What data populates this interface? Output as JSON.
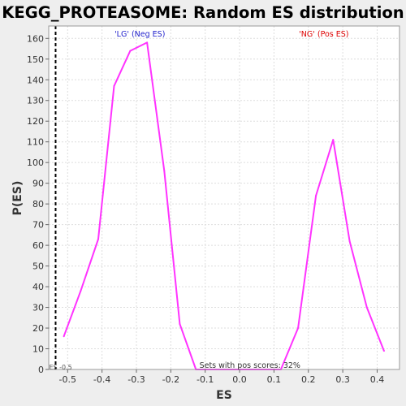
{
  "chart_data": {
    "type": "line",
    "title": "KEGG_PROTEASOME: Random ES distribution",
    "xlabel": "ES",
    "ylabel": "P(ES)",
    "xlim": [
      -0.555,
      0.465
    ],
    "ylim": [
      0,
      166
    ],
    "x_ticks": [
      -0.5,
      -0.4,
      -0.3,
      -0.2,
      -0.1,
      0.0,
      0.1,
      0.2,
      0.3,
      0.4
    ],
    "x_tick_labels": [
      "-0.5",
      "-0.4",
      "-0.3",
      "-0.2",
      "-0.1",
      "0.0",
      "0.1",
      "0.2",
      "0.3",
      "0.4"
    ],
    "y_ticks": [
      0,
      10,
      20,
      30,
      40,
      50,
      60,
      70,
      80,
      90,
      100,
      110,
      120,
      130,
      140,
      150,
      160
    ],
    "y_tick_labels": [
      "0",
      "10",
      "20",
      "30",
      "40",
      "50",
      "60",
      "70",
      "80",
      "90",
      "100",
      "110",
      "120",
      "130",
      "140",
      "150",
      "160"
    ],
    "grid": true,
    "series": [
      {
        "color": "#ff33ff",
        "x": [
          -0.511,
          -0.462,
          -0.411,
          -0.365,
          -0.318,
          -0.269,
          -0.219,
          -0.174,
          -0.127,
          -0.08,
          -0.03,
          0.02,
          0.07,
          0.12,
          0.17,
          0.222,
          0.272,
          0.32,
          0.37,
          0.42
        ],
        "y": [
          16,
          38,
          63,
          137,
          154,
          158,
          96,
          22,
          0,
          0,
          0,
          0,
          0,
          0,
          20,
          84,
          111,
          62,
          30,
          9
        ]
      }
    ],
    "vline": {
      "x": -0.535,
      "label": "ES -0.5",
      "style": "dashed",
      "color": "#000000"
    },
    "annotations": {
      "neg": {
        "text": "'LG' (Neg ES)",
        "color": "#2222cc",
        "x": -0.29
      },
      "pos": {
        "text": "'NG' (Pos ES)",
        "color": "#dd0000",
        "x": 0.245
      },
      "pos_scores": {
        "text": "Sets with pos scores: 32%",
        "x": 0.03
      }
    }
  }
}
